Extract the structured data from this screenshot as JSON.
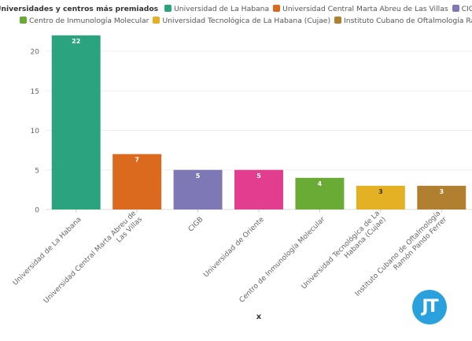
{
  "chart_data": {
    "type": "bar",
    "title": "",
    "legend_title": "Universidades y centros más premiados",
    "legend_position": "top",
    "xlabel": "x",
    "ylabel": "",
    "ylim": [
      0,
      22
    ],
    "yticks": [
      0,
      5,
      10,
      15,
      20
    ],
    "grid": true,
    "categories": [
      "Universidad de La Habana",
      "Universidad Central Marta Abreu de Las Villas",
      "CIGB",
      "Universidad de Oriente",
      "Centro de Inmunología Molecular",
      "Universidad Tecnológica de La Habana (Cujae)",
      "Instituto Cubano de Oftalmología Ramón Pando Ferrer"
    ],
    "tick_labels": [
      [
        "Universidad de La Habana"
      ],
      [
        "Universidad Central Marta Abreu de",
        "Las Villas"
      ],
      [
        "CIGB"
      ],
      [
        "Universidad de Oriente"
      ],
      [
        "Centro de Inmunología Molecular"
      ],
      [
        "Universidad Tecnológica de La",
        "Habana (Cujae)"
      ],
      [
        "Instituto Cubano de Oftalmología",
        "Ramón Pando Ferrer"
      ]
    ],
    "values": [
      22,
      7,
      5,
      5,
      4,
      3,
      3
    ],
    "colors": [
      "#2ba37f",
      "#dc6a1e",
      "#7f78b6",
      "#e23d8e",
      "#6aab36",
      "#e4b124",
      "#b07f30"
    ],
    "label_colors": [
      "#ffffff",
      "#ffffff",
      "#ffffff",
      "#ffffff",
      "#ffffff",
      "#333333",
      "#ffffff"
    ]
  },
  "logo": {
    "text": "JT",
    "color": "#2aa1dc"
  }
}
